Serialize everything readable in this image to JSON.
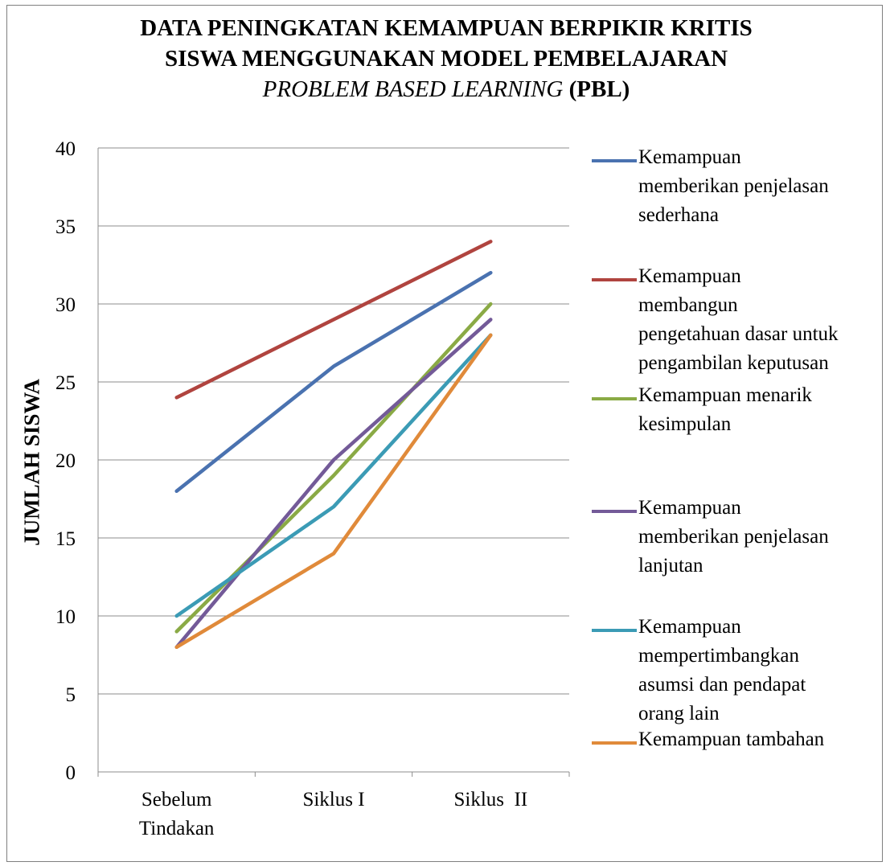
{
  "chart_data": {
    "type": "line",
    "title_lines": [
      "DATA PENINGKATAN KEMAMPUAN BERPIKIR KRITIS",
      "SISWA MENGGUNAKAN MODEL PEMBELAJARAN"
    ],
    "title_line3_italic": "PROBLEM BASED LEARNING",
    "title_line3_rest": " (PBL)",
    "ylabel": "JUMLAH SISWA",
    "xlabel": "",
    "categories": [
      "Sebelum Tindakan",
      "Siklus I",
      "Siklus  II"
    ],
    "category_label_lines": [
      [
        "Sebelum",
        "Tindakan"
      ],
      [
        "Siklus I"
      ],
      [
        "Siklus  II"
      ]
    ],
    "ylim": [
      0,
      40
    ],
    "yticks": [
      0,
      5,
      10,
      15,
      20,
      25,
      30,
      35,
      40
    ],
    "grid": true,
    "legend_position": "right",
    "series": [
      {
        "name": "Kemampuan memberikan penjelasan sederhana",
        "legend_lines": [
          "Kemampuan",
          "memberikan penjelasan",
          "sederhana"
        ],
        "color": "#4a72b0",
        "values": [
          18,
          26,
          32
        ]
      },
      {
        "name": "Kemampuan membangun pengetahuan dasar untuk pengambilan keputusan",
        "legend_lines": [
          "Kemampuan",
          "membangun",
          "pengetahuan dasar untuk",
          "pengambilan keputusan"
        ],
        "color": "#b0443f",
        "values": [
          24,
          29,
          34
        ]
      },
      {
        "name": "Kemampuan menarik kesimpulan",
        "legend_lines": [
          "Kemampuan menarik",
          "kesimpulan"
        ],
        "color": "#8aaa45",
        "values": [
          9,
          19,
          30
        ]
      },
      {
        "name": "Kemampuan memberikan penjelasan lanjutan",
        "legend_lines": [
          "Kemampuan",
          "memberikan penjelasan",
          "lanjutan"
        ],
        "color": "#735a98",
        "values": [
          8,
          20,
          29
        ]
      },
      {
        "name": "Kemampuan mempertimbangkan asumsi dan pendapat orang lain",
        "legend_lines": [
          "Kemampuan",
          "mempertimbangkan",
          "asumsi dan pendapat",
          "orang lain"
        ],
        "color": "#3b9bb5",
        "values": [
          10,
          17,
          28
        ]
      },
      {
        "name": "Kemampuan tambahan",
        "legend_lines": [
          "Kemampuan tambahan"
        ],
        "color": "#e08a3a",
        "values": [
          8,
          14,
          28
        ]
      }
    ]
  }
}
